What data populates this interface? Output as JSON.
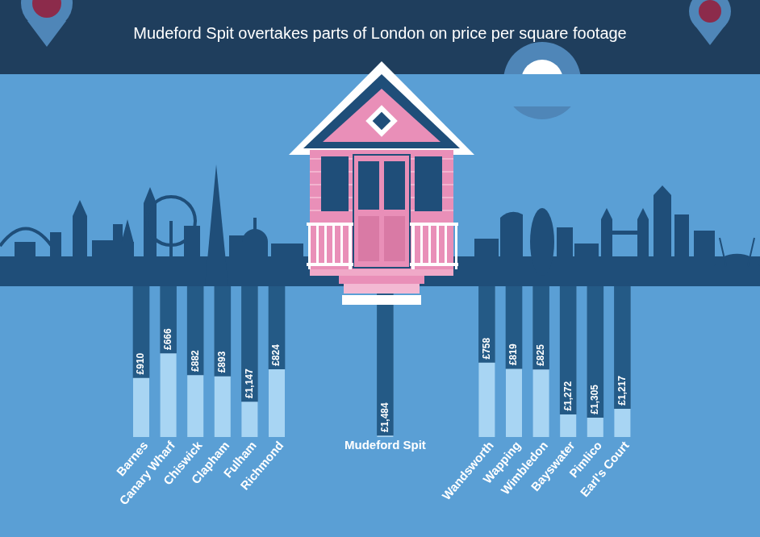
{
  "chart_data": {
    "type": "bar",
    "title": "Mudeford Spit overtakes parts of London on price per square footage",
    "categories": [
      "Barnes",
      "Canary Wharf",
      "Chiswick",
      "Clapham",
      "Fulham",
      "Richmond",
      "Mudeford Spit",
      "Wandsworth",
      "Wapping",
      "Wimbledon",
      "Bayswater",
      "Pimlico",
      "Earl's Court"
    ],
    "values": [
      910,
      666,
      882,
      893,
      1147,
      824,
      1484,
      758,
      819,
      825,
      1272,
      1305,
      1217
    ],
    "value_labels": [
      "£910",
      "£666",
      "£882",
      "£893",
      "£1,147",
      "£824",
      "£1,484",
      "£758",
      "£819",
      "£825",
      "£1,272",
      "£1,305",
      "£1,217"
    ],
    "data_labels": true,
    "color": "#245a86",
    "ylim": [
      0,
      1500
    ],
    "tick_labels": false,
    "grid": false
  }
}
